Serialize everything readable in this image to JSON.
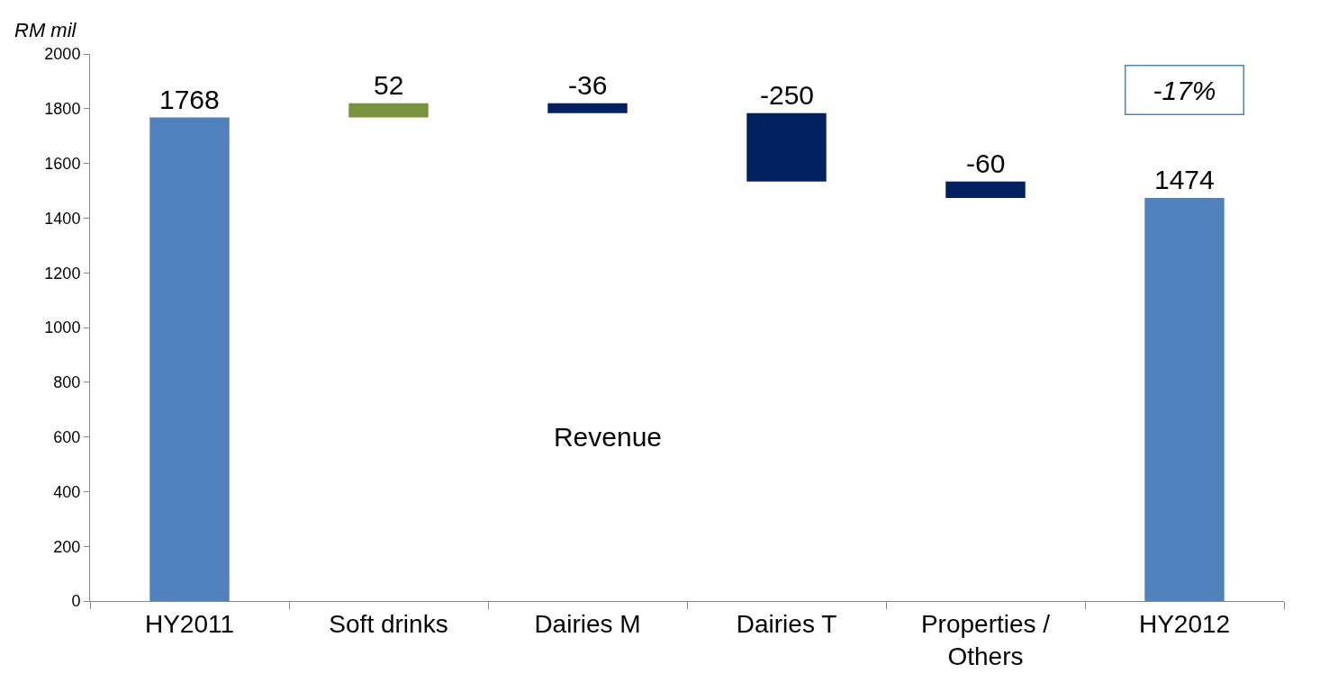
{
  "chart_data": {
    "type": "bar",
    "ylabel": "RM mil",
    "categories": [
      "HY2011",
      "Soft drinks",
      "Dairies M",
      "Dairies T",
      "Properties / Others",
      "HY2012"
    ],
    "values": [
      1768,
      52,
      -36,
      -250,
      -60,
      1474
    ],
    "base": [
      0,
      1768,
      1820,
      1784,
      1534,
      0
    ],
    "colors": [
      "#4f81bd",
      "#77933c",
      "#002060",
      "#002060",
      "#002060",
      "#4f81bd"
    ],
    "ylim": [
      0,
      2000
    ],
    "yticks": [
      0,
      200,
      400,
      600,
      800,
      1000,
      1200,
      1400,
      1600,
      1800,
      2000
    ],
    "data_labels": true,
    "annotations": [
      "-17%",
      "Revenue"
    ]
  }
}
